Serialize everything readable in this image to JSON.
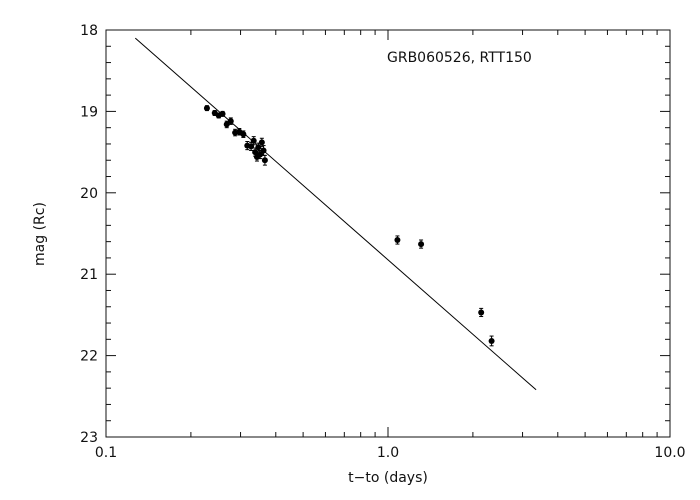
{
  "chart_data": {
    "type": "scatter",
    "title": "",
    "annotation": "GRB060526, RTT150",
    "xlabel": "t−to (days)",
    "ylabel": "mag (Rc)",
    "xscale": "log",
    "xlim": [
      0.1,
      10.0
    ],
    "ylim": [
      23.0,
      18.0
    ],
    "y_inverted": true,
    "xticks": [
      {
        "value": 0.1,
        "label": "0.1"
      },
      {
        "value": 1.0,
        "label": "1.0"
      },
      {
        "value": 10.0,
        "label": "10.0"
      }
    ],
    "yticks": [
      {
        "value": 18,
        "label": "18"
      },
      {
        "value": 19,
        "label": "19"
      },
      {
        "value": 20,
        "label": "20"
      },
      {
        "value": 21,
        "label": "21"
      },
      {
        "value": 22,
        "label": "22"
      },
      {
        "value": 23,
        "label": "23"
      }
    ],
    "grid": false,
    "series": [
      {
        "kind": "points_with_errorbars",
        "color": "#000000",
        "points": [
          {
            "x": 0.228,
            "y": 18.96,
            "err": 0.03
          },
          {
            "x": 0.243,
            "y": 19.02,
            "err": 0.03
          },
          {
            "x": 0.251,
            "y": 19.05,
            "err": 0.03
          },
          {
            "x": 0.259,
            "y": 19.03,
            "err": 0.03
          },
          {
            "x": 0.268,
            "y": 19.16,
            "err": 0.04
          },
          {
            "x": 0.277,
            "y": 19.12,
            "err": 0.04
          },
          {
            "x": 0.287,
            "y": 19.26,
            "err": 0.04
          },
          {
            "x": 0.297,
            "y": 19.25,
            "err": 0.04
          },
          {
            "x": 0.307,
            "y": 19.28,
            "err": 0.04
          },
          {
            "x": 0.317,
            "y": 19.42,
            "err": 0.05
          },
          {
            "x": 0.327,
            "y": 19.43,
            "err": 0.05
          },
          {
            "x": 0.334,
            "y": 19.36,
            "err": 0.05
          },
          {
            "x": 0.338,
            "y": 19.5,
            "err": 0.05
          },
          {
            "x": 0.343,
            "y": 19.56,
            "err": 0.05
          },
          {
            "x": 0.347,
            "y": 19.44,
            "err": 0.05
          },
          {
            "x": 0.352,
            "y": 19.53,
            "err": 0.05
          },
          {
            "x": 0.357,
            "y": 19.38,
            "err": 0.05
          },
          {
            "x": 0.362,
            "y": 19.48,
            "err": 0.06
          },
          {
            "x": 0.366,
            "y": 19.6,
            "err": 0.06
          },
          {
            "x": 1.08,
            "y": 20.58,
            "err": 0.05
          },
          {
            "x": 1.31,
            "y": 20.63,
            "err": 0.05
          },
          {
            "x": 2.14,
            "y": 21.47,
            "err": 0.05
          },
          {
            "x": 2.33,
            "y": 21.82,
            "err": 0.06
          }
        ]
      },
      {
        "kind": "fit_line",
        "color": "#000000",
        "x": [
          0.127,
          3.35
        ],
        "y": [
          18.1,
          22.42
        ]
      }
    ]
  }
}
